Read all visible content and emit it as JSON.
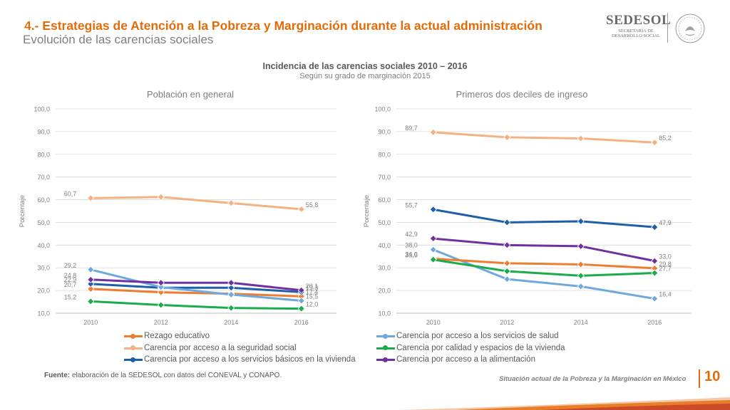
{
  "header": {
    "title": "4.- Estrategias de Atención a la Pobreza y Marginación durante la actual administración",
    "subtitle": "Evolución de las carencias sociales"
  },
  "logo": {
    "name": "SEDESOL",
    "sub_line1": "SECRETARÍA DE",
    "sub_line2": "DESARROLLO SOCIAL"
  },
  "colors": {
    "rezago": "#ed7d31",
    "seguridad": "#f4b183",
    "basicos": "#1f5fa8",
    "salud": "#6fa8dc",
    "vivienda": "#1aab4b",
    "alimentacion": "#7030a0",
    "title_accent": "#e36c0a"
  },
  "chart_data": [
    {
      "type": "line",
      "title": "Incidencia de las carencias sociales 2010 – 2016",
      "subtitle": "Según su grado de marginación 2015",
      "panel_title": "Población en general",
      "ylabel": "Porcentaje",
      "x": [
        "2010",
        "2012",
        "2014",
        "2016"
      ],
      "y_ticks": [
        "10,0",
        "20,0",
        "30,0",
        "40,0",
        "50,0",
        "60,0",
        "70,0",
        "80,0",
        "90,0",
        "100,0"
      ],
      "ylim": [
        10,
        100
      ],
      "series": [
        {
          "key": "rezago",
          "name": "Rezago educativo",
          "values": [
            20.7,
            19.2,
            18.6,
            17.4
          ],
          "labels": [
            "20,7",
            "",
            "",
            "17,4"
          ]
        },
        {
          "key": "seguridad",
          "name": "Carencia por acceso a la seguridad social",
          "values": [
            60.7,
            61.2,
            58.5,
            55.8
          ],
          "labels": [
            "60,7",
            "",
            "",
            "55,8"
          ]
        },
        {
          "key": "basicos",
          "name": "Carencia por acceso a los servicios básicos en la vivienda",
          "values": [
            22.9,
            21.2,
            21.2,
            19.3
          ],
          "labels": [
            "22,9",
            "",
            "",
            "19,3"
          ]
        },
        {
          "key": "salud",
          "name": "Carencia por acceso a los servicios de salud",
          "values": [
            29.2,
            21.5,
            18.2,
            15.5
          ],
          "labels": [
            "29,2",
            "",
            "",
            "15,5"
          ]
        },
        {
          "key": "vivienda",
          "name": "Carencia por calidad y espacios de la vivienda",
          "values": [
            15.2,
            13.6,
            12.3,
            12.0
          ],
          "labels": [
            "15,2",
            "",
            "",
            "12,0"
          ]
        },
        {
          "key": "alimentacion",
          "name": "Carencia por acceso a la alimentación",
          "values": [
            24.8,
            23.4,
            23.4,
            20.1
          ],
          "labels": [
            "24,8",
            "",
            "",
            "20,1"
          ]
        }
      ]
    },
    {
      "type": "line",
      "panel_title": "Primeros dos deciles de ingreso",
      "ylabel": "Porcentaje",
      "x": [
        "2010",
        "2012",
        "2014",
        "2016"
      ],
      "y_ticks": [
        "10,0",
        "20,0",
        "30,0",
        "40,0",
        "50,0",
        "60,0",
        "70,0",
        "80,0",
        "90,0",
        "100,0"
      ],
      "ylim": [
        10,
        100
      ],
      "series": [
        {
          "key": "seguridad",
          "name": "Carencia por acceso a la seguridad social",
          "values": [
            89.7,
            87.5,
            87.0,
            85.2
          ],
          "labels": [
            "89,7",
            "",
            "",
            "85,2"
          ]
        },
        {
          "key": "basicos",
          "name": "Carencia por acceso a los servicios básicos en la vivienda",
          "values": [
            55.7,
            50.0,
            50.5,
            47.9
          ],
          "labels": [
            "55,7",
            "",
            "",
            "47,9"
          ]
        },
        {
          "key": "alimentacion",
          "name": "Carencia por acceso a la alimentación",
          "values": [
            42.9,
            40.0,
            39.5,
            33.0
          ],
          "labels": [
            "42,9",
            "",
            "",
            "33,0"
          ]
        },
        {
          "key": "salud",
          "name": "Carencia por acceso a los servicios de salud",
          "values": [
            38.0,
            25.0,
            21.8,
            16.4
          ],
          "labels": [
            "38,0",
            "",
            "",
            "16,4"
          ]
        },
        {
          "key": "rezago",
          "name": "Rezago educativo",
          "values": [
            34.0,
            32.0,
            31.5,
            29.8
          ],
          "labels": [
            "34,0",
            "",
            "",
            "29,8"
          ]
        },
        {
          "key": "vivienda",
          "name": "Carencia por calidad y espacios de la vivienda",
          "values": [
            33.6,
            28.5,
            26.5,
            27.7
          ],
          "labels": [
            "33,6",
            "",
            "",
            "27,7"
          ]
        }
      ]
    }
  ],
  "legend": {
    "left": [
      {
        "key": "rezago",
        "label": "Rezago educativo"
      },
      {
        "key": "seguridad",
        "label": "Carencia por acceso a la seguridad social"
      },
      {
        "key": "basicos",
        "label": "Carencia por acceso a los servicios básicos en la vivienda"
      }
    ],
    "right": [
      {
        "key": "salud",
        "label": "Carencia por acceso a los servicios de salud"
      },
      {
        "key": "vivienda",
        "label": "Carencia por calidad y espacios de la vivienda"
      },
      {
        "key": "alimentacion",
        "label": "Carencia por acceso a la alimentación"
      }
    ]
  },
  "footer": {
    "source_label": "Fuente:",
    "source_text": " elaboración de la SEDESOL con datos del CONEVAL y CONAPO.",
    "presentation": "Situación actual de la Pobreza y la Marginación en México",
    "page_number": "10"
  }
}
